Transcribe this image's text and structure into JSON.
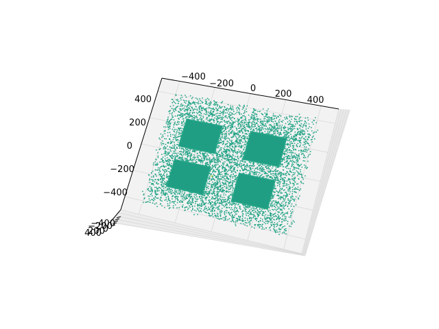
{
  "chart_data": {
    "type": "scatter",
    "projection": "3d",
    "title": "",
    "xlabel": "",
    "ylabel": "",
    "zlabel": "",
    "xlim": [
      -500,
      500
    ],
    "ylim": [
      -500,
      500
    ],
    "zlim": [
      -400,
      400
    ],
    "x_ticks": [
      "−400",
      "−200",
      "0",
      "200",
      "400"
    ],
    "y_ticks": [
      "400",
      "200",
      "0",
      "−200",
      "−400"
    ],
    "z_ticks": [
      "−400",
      "−200",
      "0",
      "200",
      "400"
    ],
    "grid": true,
    "legend": "none",
    "colors": {
      "points": "#21a385",
      "squares": "#1f9e84",
      "pane": "#f2f2f2",
      "grid": "#d9d9d9",
      "highlight": "#c8d93a"
    },
    "series": [
      {
        "distribution": "scatter cloud, roughly uniform, z = 0",
        "x_range": [
          -420,
          420
        ],
        "y_range": [
          -420,
          420
        ],
        "point_count": 6500
      },
      {
        "distribution": "four dense filled squares, z = 0",
        "squares": [
          {
            "x": [
              -300,
              -100
            ],
            "y": [
              40,
              240
            ]
          },
          {
            "x": [
              60,
              260
            ],
            "y": [
              40,
              240
            ]
          },
          {
            "x": [
              -300,
              -100
            ],
            "y": [
              -260,
              -60
            ]
          },
          {
            "x": [
              60,
              260
            ],
            "y": [
              -260,
              -60
            ]
          }
        ]
      }
    ]
  }
}
